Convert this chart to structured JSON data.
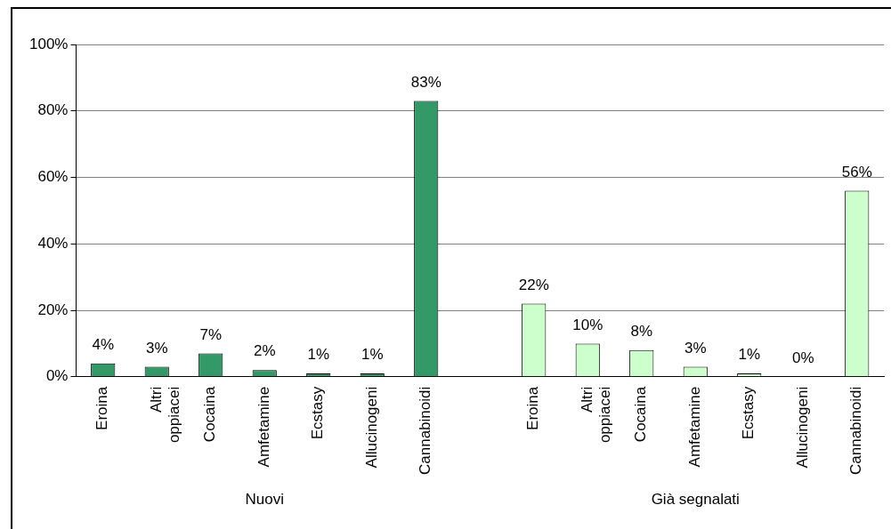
{
  "chart_data": {
    "type": "bar",
    "categories": [
      "Eroina",
      "Altri oppiacei",
      "Cocaina",
      "Amfetamine",
      "Ecstasy",
      "Allucinogeni",
      "Cannabinoidi",
      null,
      "Eroina",
      "Altri oppiacei",
      "Cocaina",
      "Amfetamine",
      "Ecstasy",
      "Allucinogeni",
      "Cannabinoidi"
    ],
    "values": [
      4,
      3,
      7,
      2,
      1,
      1,
      83,
      null,
      22,
      10,
      8,
      3,
      1,
      0,
      56
    ],
    "value_labels": [
      "4%",
      "3%",
      "7%",
      "2%",
      "1%",
      "1%",
      "83%",
      null,
      "22%",
      "10%",
      "8%",
      "3%",
      "1%",
      "0%",
      "56%"
    ],
    "colors": [
      "#339966",
      "#339966",
      "#339966",
      "#339966",
      "#339966",
      "#339966",
      "#339966",
      null,
      "#ccffcc",
      "#ccffcc",
      "#ccffcc",
      "#ccffcc",
      "#ccffcc",
      "#ccffcc",
      "#ccffcc"
    ],
    "ylim": [
      0,
      100
    ],
    "yticks": [
      {
        "value": 0,
        "label": "0%"
      },
      {
        "value": 20,
        "label": "20%"
      },
      {
        "value": 40,
        "label": "40%"
      },
      {
        "value": 60,
        "label": "60%"
      },
      {
        "value": 80,
        "label": "80%"
      },
      {
        "value": 100,
        "label": "100%"
      }
    ],
    "grid": "y",
    "legend": false,
    "annotations": [
      "Nuovi",
      "Già segnalati"
    ]
  }
}
